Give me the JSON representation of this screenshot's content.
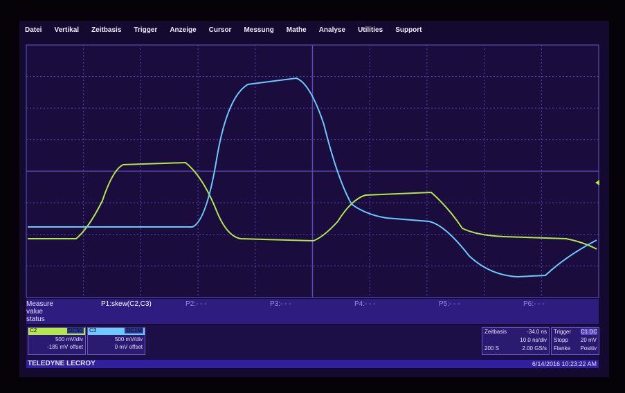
{
  "menu": [
    "Datei",
    "Vertikal",
    "Zeitbasis",
    "Trigger",
    "Anzeige",
    "Cursor",
    "Messung",
    "Mathe",
    "Analyse",
    "Utilities",
    "Support"
  ],
  "measure": {
    "labels": [
      "Measure",
      "value",
      "status"
    ],
    "params": [
      "P1:skew(C2,C3)",
      "P2:- - -",
      "P3:- - -",
      "P4:- - -",
      "P5:- - -",
      "P6:- - -"
    ]
  },
  "channels": [
    {
      "name": "C2",
      "coupling": "DC50",
      "scale": "500 mV/div",
      "offset": "-185 mV offset"
    },
    {
      "name": "C3",
      "coupling": "DC1M",
      "scale": "500 mV/div",
      "offset": "0 mV offset"
    }
  ],
  "timebase": {
    "label": "Zeitbasis",
    "delay": "-34.0 ns",
    "scale": "10.0 ns/div",
    "samples": "200 S",
    "rate": "2.00 GS/s"
  },
  "trigger": {
    "label": "Trigger",
    "source": "C1 DC",
    "mode": "Stopp",
    "level": "20 mV",
    "type": "Flanke",
    "slope": "Positiv"
  },
  "footer": {
    "brand": "TELEDYNE LECROY",
    "timestamp": "6/14/2016 10:23:22 AM"
  }
}
